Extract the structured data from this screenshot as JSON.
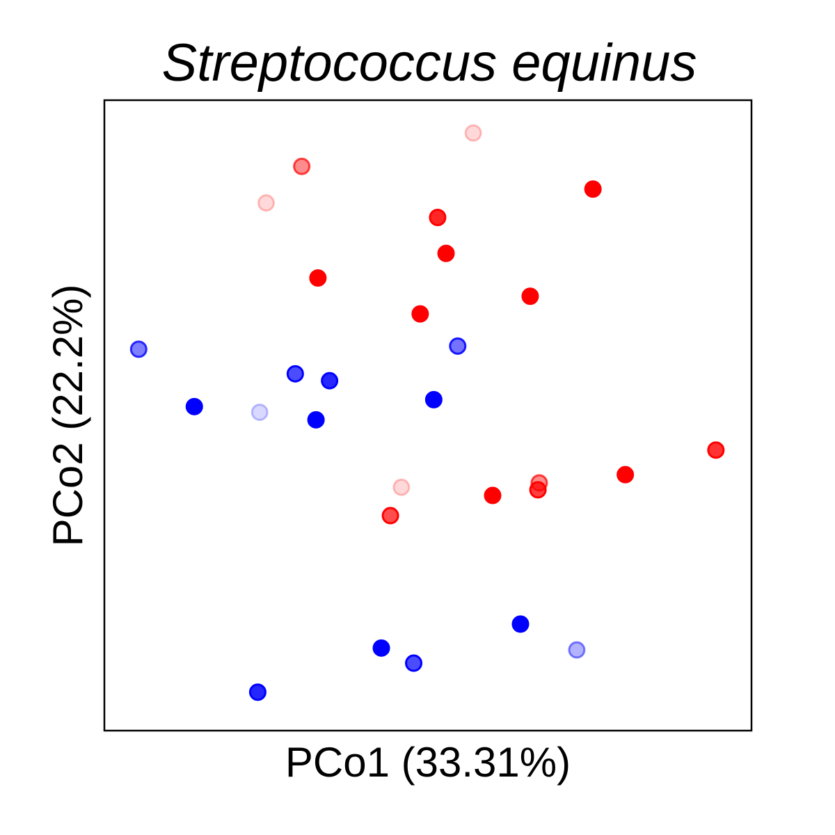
{
  "chart_data": {
    "type": "scatter",
    "title": "Streptococcus equinus",
    "xlabel": "PCo1 (33.31%)",
    "ylabel": "PCo2 (22.2%)",
    "xlim": [
      0,
      100
    ],
    "ylim": [
      0,
      100
    ],
    "grid": false,
    "ticks": false,
    "legend": "none",
    "colors": {
      "red": "#ff0000",
      "blue": "#0000ff",
      "frame": "#000000"
    },
    "points": [
      {
        "x": 30.5,
        "y": 89.5,
        "color": "red",
        "alpha": 0.45
      },
      {
        "x": 57.0,
        "y": 94.8,
        "color": "red",
        "alpha": 0.15
      },
      {
        "x": 75.5,
        "y": 85.9,
        "color": "red",
        "alpha": 1.0
      },
      {
        "x": 25.0,
        "y": 83.7,
        "color": "red",
        "alpha": 0.15
      },
      {
        "x": 51.5,
        "y": 81.4,
        "color": "red",
        "alpha": 0.85
      },
      {
        "x": 52.8,
        "y": 75.7,
        "color": "red",
        "alpha": 1.0
      },
      {
        "x": 33.0,
        "y": 71.8,
        "color": "red",
        "alpha": 1.0
      },
      {
        "x": 65.8,
        "y": 68.9,
        "color": "red",
        "alpha": 1.0
      },
      {
        "x": 48.8,
        "y": 66.1,
        "color": "red",
        "alpha": 1.0
      },
      {
        "x": 94.5,
        "y": 44.5,
        "color": "red",
        "alpha": 0.8
      },
      {
        "x": 80.5,
        "y": 40.6,
        "color": "red",
        "alpha": 1.0
      },
      {
        "x": 67.2,
        "y": 39.3,
        "color": "red",
        "alpha": 0.45
      },
      {
        "x": 67.0,
        "y": 38.2,
        "color": "red",
        "alpha": 0.75
      },
      {
        "x": 45.9,
        "y": 38.6,
        "color": "red",
        "alpha": 0.15
      },
      {
        "x": 60.0,
        "y": 37.3,
        "color": "red",
        "alpha": 1.0
      },
      {
        "x": 44.2,
        "y": 34.1,
        "color": "red",
        "alpha": 0.7
      },
      {
        "x": 5.3,
        "y": 60.5,
        "color": "blue",
        "alpha": 0.5
      },
      {
        "x": 54.6,
        "y": 61.0,
        "color": "blue",
        "alpha": 0.55
      },
      {
        "x": 29.5,
        "y": 56.6,
        "color": "blue",
        "alpha": 0.7
      },
      {
        "x": 34.8,
        "y": 55.5,
        "color": "blue",
        "alpha": 0.85
      },
      {
        "x": 50.9,
        "y": 52.5,
        "color": "blue",
        "alpha": 1.0
      },
      {
        "x": 13.9,
        "y": 51.4,
        "color": "blue",
        "alpha": 1.0
      },
      {
        "x": 24.0,
        "y": 50.5,
        "color": "blue",
        "alpha": 0.15
      },
      {
        "x": 32.7,
        "y": 49.3,
        "color": "blue",
        "alpha": 1.0
      },
      {
        "x": 64.3,
        "y": 16.9,
        "color": "blue",
        "alpha": 1.0
      },
      {
        "x": 73.0,
        "y": 12.8,
        "color": "blue",
        "alpha": 0.3
      },
      {
        "x": 42.8,
        "y": 13.1,
        "color": "blue",
        "alpha": 1.0
      },
      {
        "x": 47.8,
        "y": 10.7,
        "color": "blue",
        "alpha": 0.7
      },
      {
        "x": 23.7,
        "y": 6.1,
        "color": "blue",
        "alpha": 0.85
      }
    ]
  }
}
